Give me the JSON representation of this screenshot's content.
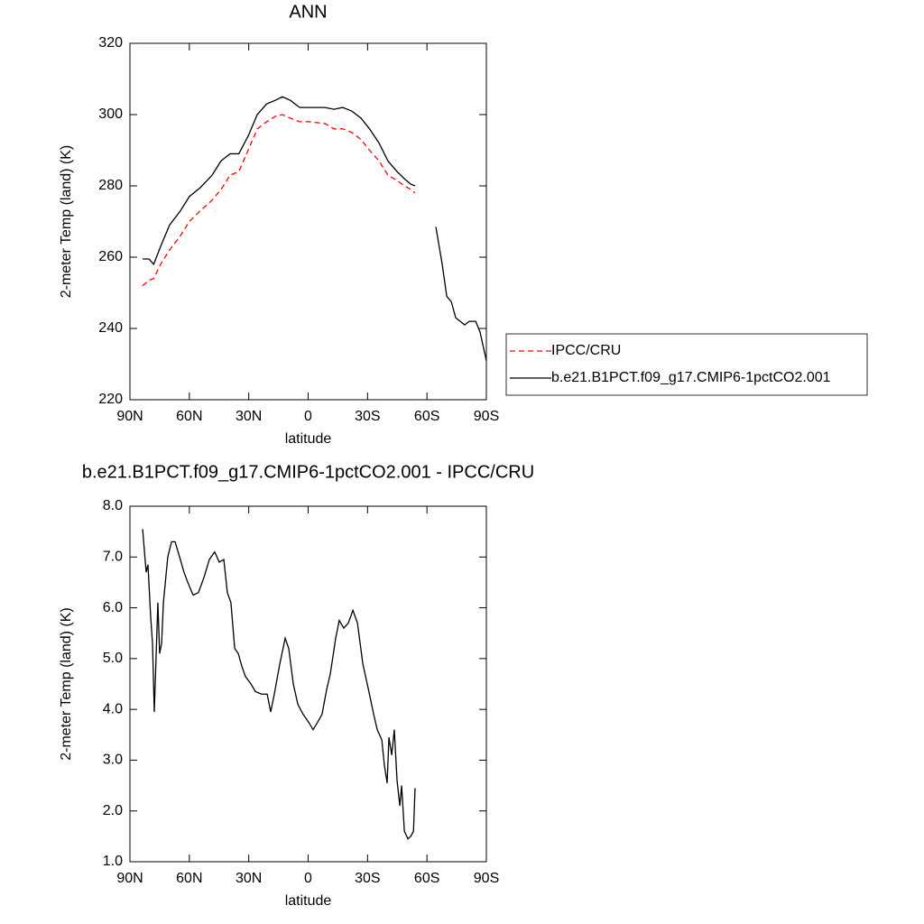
{
  "chart_data": [
    {
      "type": "line",
      "title": "ANN",
      "x_label": "latitude",
      "y_label": "2-meter Temp (land) (K)",
      "x": [
        83.6,
        80.4,
        78,
        74.5,
        70,
        64.5,
        60,
        54.5,
        48.5,
        44,
        39.4,
        35,
        30.3,
        25.7,
        21,
        16.6,
        13,
        9,
        4.3,
        -0.2,
        -8.5,
        -13,
        -17.5,
        -22,
        -26.7,
        -31,
        -35.8,
        -40.3,
        -44.9,
        -48.6,
        -51.8,
        -54,
        -59,
        -64.5,
        -67.7,
        -70,
        -72.3,
        -74.5,
        -76.8,
        -79,
        -81.4,
        -84.6,
        -86.8,
        -90
      ],
      "series": [
        {
          "name": "IPCC/CRU",
          "color": "#ff0000",
          "linestyle": "dashed",
          "values": [
            252,
            253.5,
            254,
            258,
            262,
            266,
            270,
            273,
            276,
            279,
            283,
            284,
            290,
            296,
            298,
            299.5,
            300,
            299,
            298,
            298,
            297.5,
            296,
            296,
            295,
            293,
            290,
            287,
            283,
            281.5,
            280,
            279,
            278,
            null,
            null,
            null,
            null,
            null,
            null,
            null,
            null,
            null,
            null,
            null,
            null
          ]
        },
        {
          "name": "b.e21.B1PCT.f09_g17.CMIP6-1pctCO2.001",
          "color": "#000000",
          "linestyle": "solid",
          "values": [
            259.5,
            259.5,
            258,
            263,
            269,
            273,
            277,
            279.5,
            283,
            287,
            289,
            289,
            294,
            300,
            303,
            304,
            305,
            304,
            302,
            302,
            302,
            301.5,
            302,
            301,
            299,
            296,
            292,
            287,
            284,
            282,
            280.5,
            280,
            null,
            268.5,
            258,
            249,
            247.5,
            243,
            242,
            241,
            242,
            242,
            239,
            231
          ]
        }
      ],
      "xlim": [
        90,
        -90
      ],
      "xticks": [
        {
          "value": 90,
          "label": "90N"
        },
        {
          "value": 60,
          "label": "60N"
        },
        {
          "value": 30,
          "label": "30N"
        },
        0,
        {
          "value": -30,
          "label": "30S"
        },
        {
          "value": -60,
          "label": "60S"
        },
        {
          "value": -90,
          "label": "90S"
        }
      ],
      "ylim": [
        220,
        320
      ],
      "yticks": [
        220,
        240,
        260,
        280,
        300,
        320
      ],
      "legend": "right"
    },
    {
      "type": "line",
      "title": "b.e21.B1PCT.f09_g17.CMIP6-1pctCO2.001 - IPCC/CRU",
      "x_label": "latitude",
      "y_label": "2-meter Temp (land) (K)",
      "x": [
        83.6,
        81.8,
        80.9,
        79.5,
        78.6,
        77.7,
        75.9,
        75,
        74,
        73.1,
        70.9,
        69,
        67.2,
        64.9,
        62.7,
        60.8,
        58.1,
        55.4,
        52.6,
        49.9,
        47.2,
        44.9,
        42.6,
        40.8,
        39,
        37.1,
        35.3,
        33.5,
        31.7,
        28.9,
        26.6,
        23.5,
        20.7,
        18.9,
        17.1,
        14.3,
        11.6,
        9.8,
        7.5,
        5.2,
        2.5,
        -0.2,
        -2.5,
        -4.8,
        -7,
        -9.4,
        -11.2,
        -13.9,
        -15.7,
        -18,
        -20.3,
        -22.6,
        -24.9,
        -27.6,
        -30.4,
        -33.1,
        -34.9,
        -37.2,
        -38.5,
        -39.9,
        -40.8,
        -42.2,
        -43.5,
        -44.9,
        -46.3,
        -47.2,
        -48.6,
        -50.4,
        -51.8,
        -53.2,
        -54
      ],
      "series": [
        {
          "name": "b.e21.B1PCT.f09_g17.CMIP6-1pctCO2.001 - IPCC/CRU",
          "color": "#000000",
          "linestyle": "solid",
          "values": [
            7.55,
            6.7,
            6.85,
            5.8,
            5.3,
            3.95,
            6.1,
            5.1,
            5.3,
            6.1,
            7.0,
            7.3,
            7.3,
            7.0,
            6.7,
            6.5,
            6.25,
            6.3,
            6.6,
            6.95,
            7.1,
            6.9,
            6.95,
            6.3,
            6.1,
            5.2,
            5.1,
            4.85,
            4.65,
            4.5,
            4.35,
            4.3,
            4.3,
            3.95,
            4.3,
            4.9,
            5.4,
            5.2,
            4.5,
            4.1,
            3.9,
            3.75,
            3.6,
            3.75,
            3.9,
            4.4,
            4.7,
            5.4,
            5.75,
            5.6,
            5.7,
            5.95,
            5.7,
            4.9,
            4.4,
            3.9,
            3.6,
            3.4,
            2.9,
            2.55,
            3.45,
            3.1,
            3.6,
            2.6,
            2.1,
            2.5,
            1.6,
            1.45,
            1.5,
            1.6,
            2.45
          ]
        }
      ],
      "xlim": [
        90,
        -90
      ],
      "xticks": [
        {
          "value": 90,
          "label": "90N"
        },
        {
          "value": 60,
          "label": "60N"
        },
        {
          "value": 30,
          "label": "30N"
        },
        0,
        {
          "value": -30,
          "label": "30S"
        },
        {
          "value": -60,
          "label": "60S"
        },
        {
          "value": -90,
          "label": "90S"
        }
      ],
      "ylim": [
        1,
        8
      ],
      "yticks": [
        {
          "value": 1,
          "label": "1.0"
        },
        {
          "value": 2,
          "label": "2.0"
        },
        {
          "value": 3,
          "label": "3.0"
        },
        {
          "value": 4,
          "label": "4.0"
        },
        {
          "value": 5,
          "label": "5.0"
        },
        {
          "value": 6,
          "label": "6.0"
        },
        {
          "value": 7,
          "label": "7.0"
        },
        {
          "value": 8,
          "label": "8.0"
        }
      ]
    }
  ]
}
